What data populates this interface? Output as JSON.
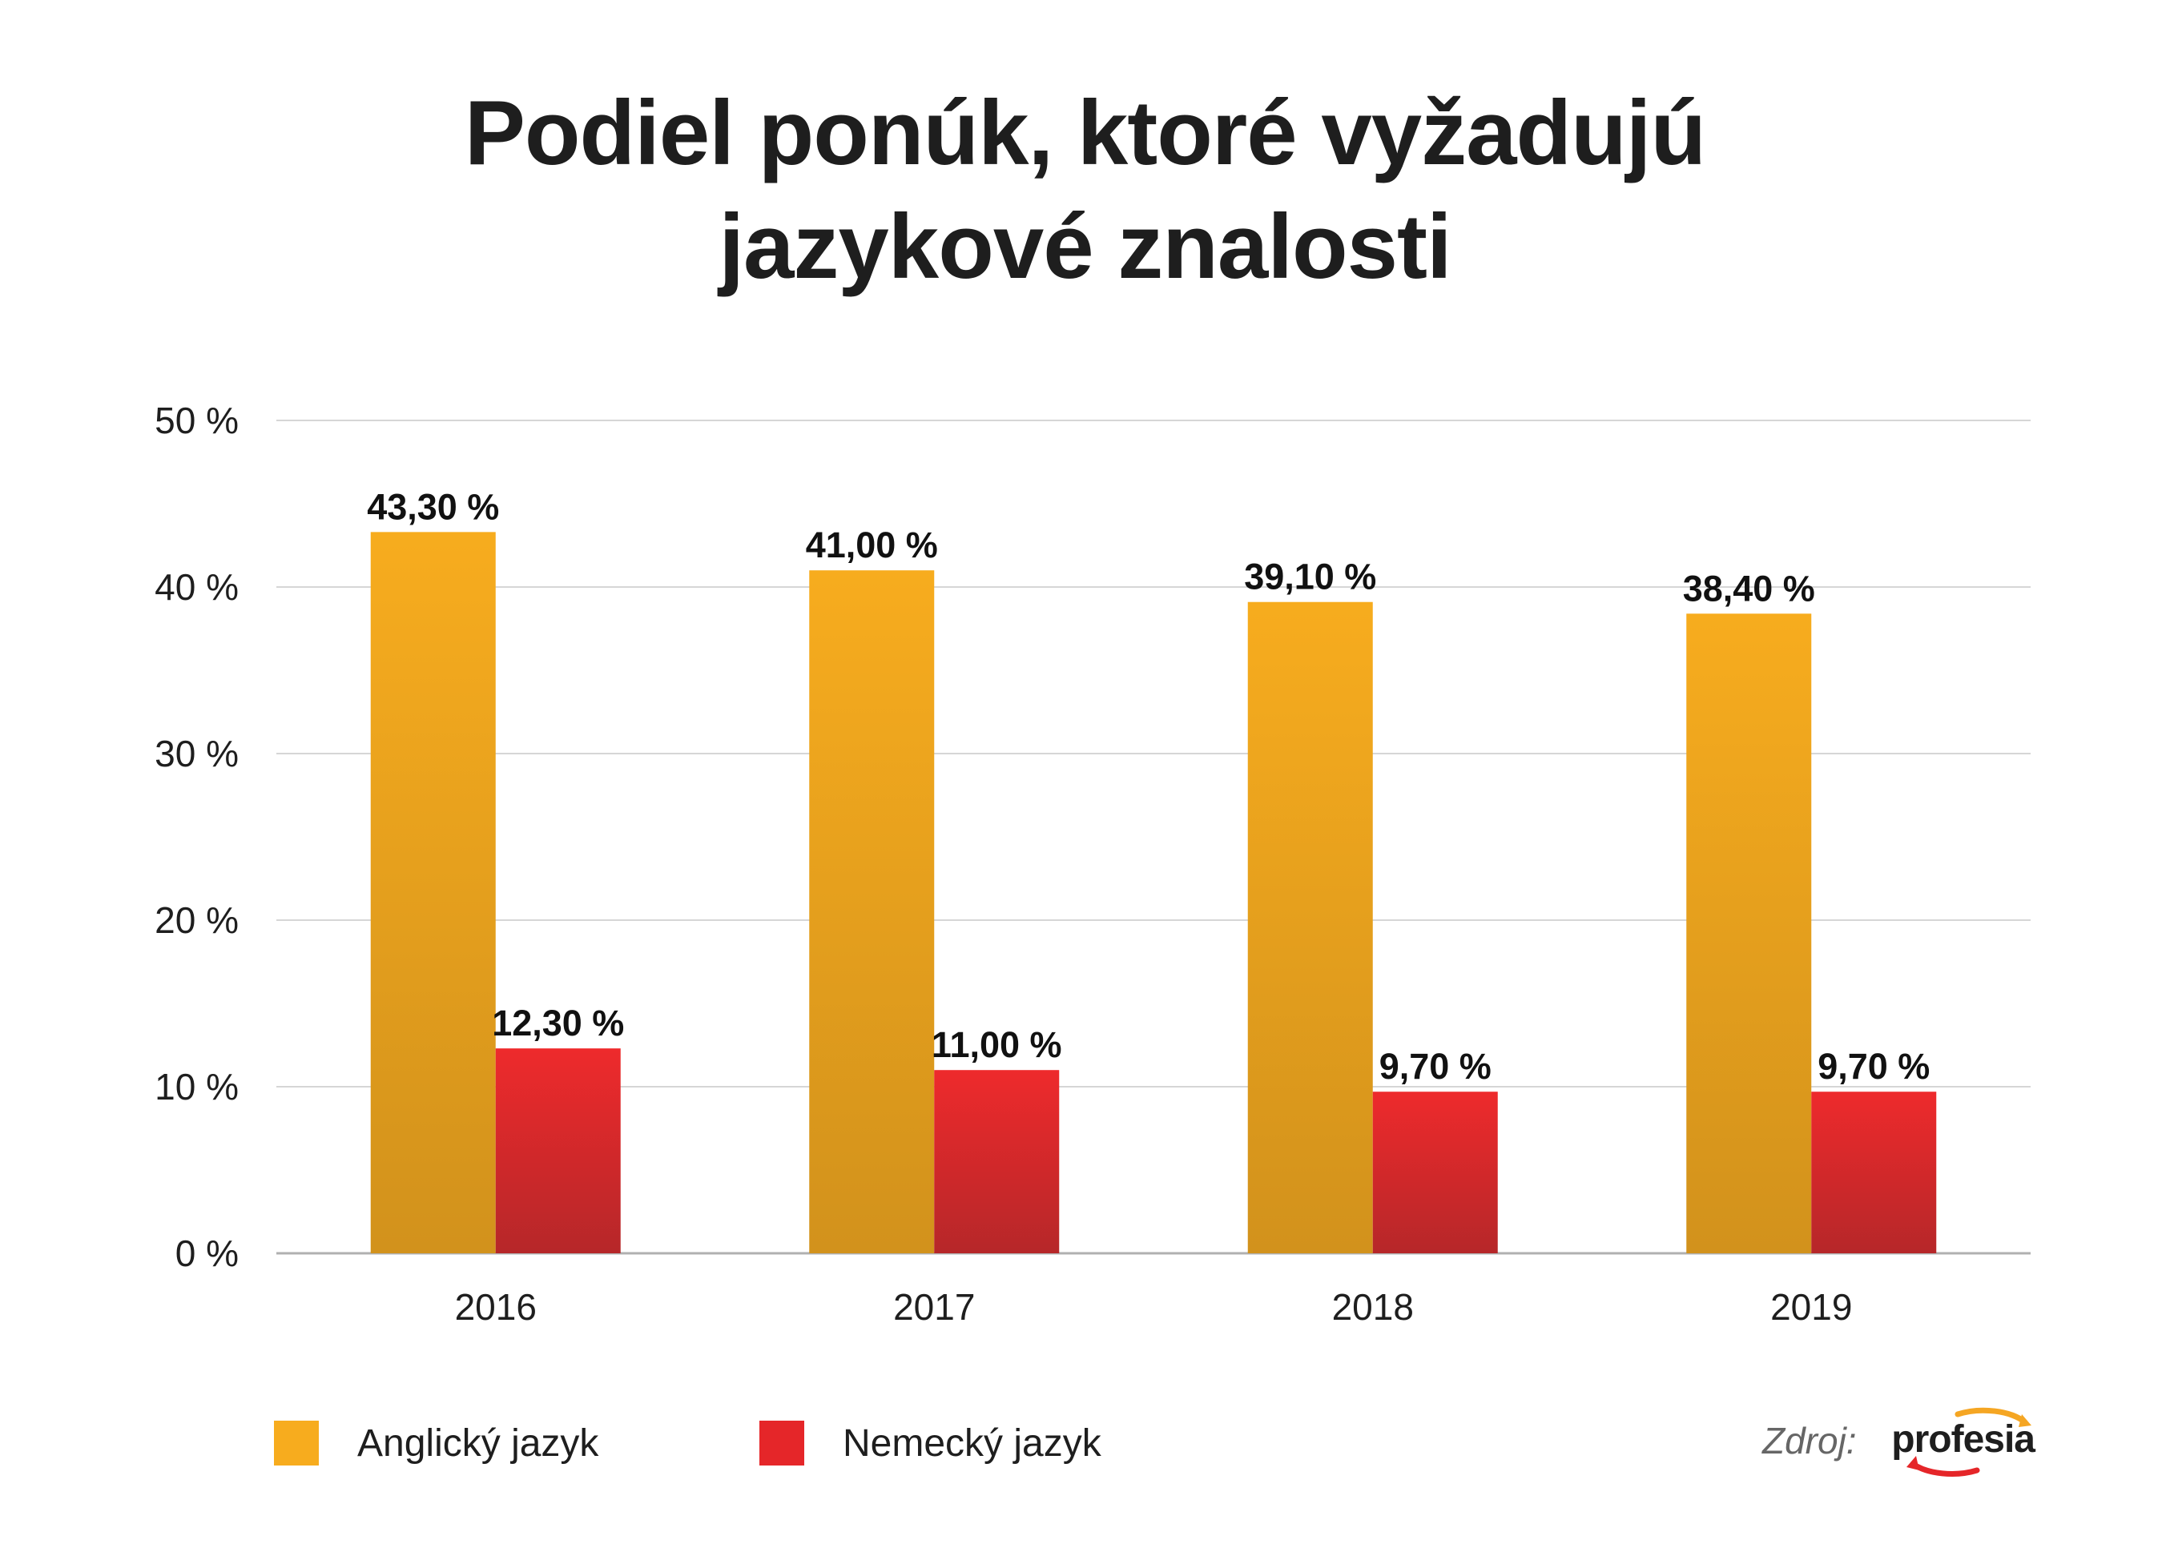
{
  "title": {
    "line1": "Podiel ponúk, ktoré vyžadujú",
    "line2": "jazykové znalosti"
  },
  "chart_data": {
    "type": "bar",
    "categories": [
      "2016",
      "2017",
      "2018",
      "2019"
    ],
    "series": [
      {
        "name": "Anglický jazyk",
        "values": [
          43.3,
          41.0,
          39.1,
          38.4
        ],
        "labels": [
          "43,30 %",
          "41,00 %",
          "39,10 %",
          "38,40 %"
        ],
        "color_top": "#f7ac1e",
        "color_bottom": "#d2921c"
      },
      {
        "name": "Nemecký jazyk",
        "values": [
          12.3,
          11.0,
          9.7,
          9.7
        ],
        "labels": [
          "12,30 %",
          "11,00 %",
          "9,70 %",
          "9,70 %"
        ],
        "color_top": "#ee2a2c",
        "color_bottom": "#b62729"
      }
    ],
    "yticks": [
      "0 %",
      "10 %",
      "20 %",
      "30 %",
      "40 %",
      "50 %"
    ],
    "ylim": [
      0,
      50
    ],
    "grid": true,
    "legend_position": "bottom-left"
  },
  "legend": {
    "english": "Anglický jazyk",
    "german": "Nemecký jazyk",
    "english_color": "#f7ac1e",
    "german_color": "#e52629"
  },
  "source": {
    "label": "Zdroj:",
    "logo_text": "profesia",
    "logo_colors": [
      "#f5a623",
      "#e52629"
    ]
  }
}
